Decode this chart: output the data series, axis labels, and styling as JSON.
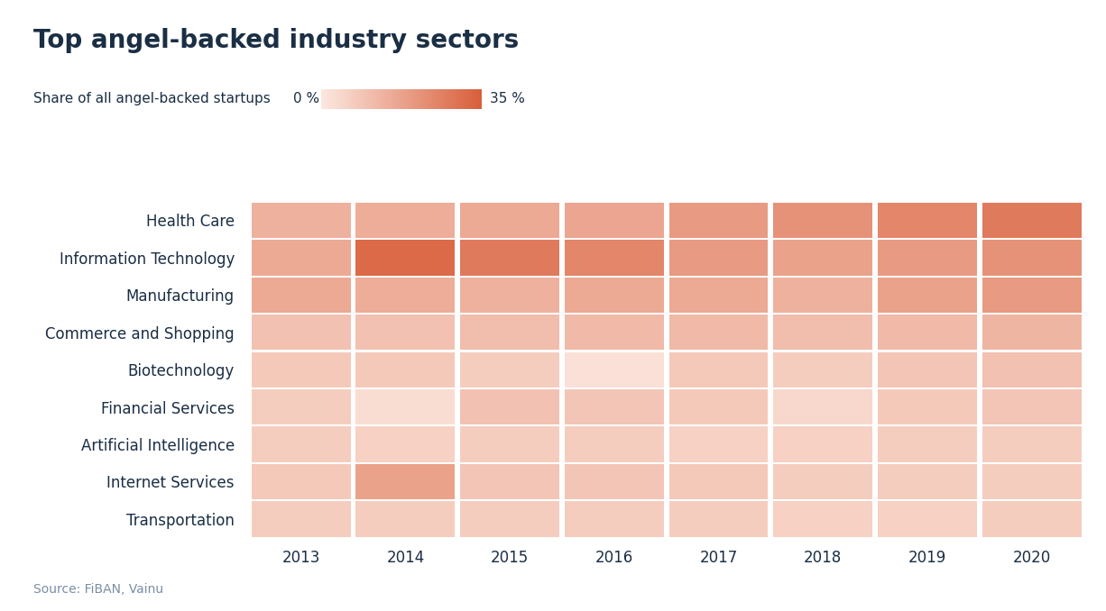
{
  "title": "Top angel-backed industry sectors",
  "subtitle": "Share of all angel-backed startups",
  "colorbar_min_label": "0 %",
  "colorbar_max_label": "35 %",
  "source": "Source: FiBAN, Vainu",
  "years": [
    2013,
    2014,
    2015,
    2016,
    2017,
    2018,
    2019,
    2020
  ],
  "sectors": [
    "Health Care",
    "Information Technology",
    "Manufacturing",
    "Commerce and Shopping",
    "Biotechnology",
    "Financial Services",
    "Artificial Intelligence",
    "Internet Services",
    "Transportation"
  ],
  "values": [
    [
      14,
      15,
      16,
      17,
      20,
      22,
      25,
      28
    ],
    [
      16,
      32,
      28,
      25,
      20,
      18,
      20,
      22
    ],
    [
      16,
      15,
      14,
      16,
      16,
      14,
      18,
      20
    ],
    [
      10,
      10,
      11,
      12,
      12,
      11,
      12,
      13
    ],
    [
      8,
      8,
      7,
      2,
      8,
      7,
      9,
      10
    ],
    [
      7,
      3,
      10,
      9,
      8,
      4,
      8,
      9
    ],
    [
      7,
      6,
      7,
      7,
      6,
      6,
      7,
      7
    ],
    [
      8,
      18,
      9,
      9,
      8,
      7,
      7,
      7
    ],
    [
      7,
      7,
      7,
      7,
      7,
      6,
      6,
      7
    ]
  ],
  "vmin": 0,
  "vmax": 35,
  "color_low": "#fce8e0",
  "color_high": "#d95f3b",
  "background_color": "#ffffff",
  "title_color": "#1a2e44",
  "label_color": "#1a2e44",
  "source_color": "#7a8fa6",
  "title_fontsize": 20,
  "label_fontsize": 12,
  "tick_fontsize": 12,
  "source_fontsize": 10,
  "subtitle_fontsize": 11
}
